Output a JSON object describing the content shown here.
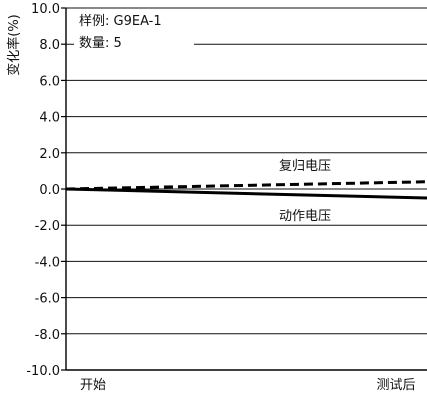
{
  "chart_data": {
    "type": "line",
    "ylabel": "变化率(%)",
    "ylim": [
      -10,
      10
    ],
    "ytick_labels": [
      "10.0",
      "8.0",
      "6.0",
      "4.0",
      "2.0",
      "0.0",
      "-2.0",
      "-4.0",
      "-6.0",
      "-8.0",
      "-10.0"
    ],
    "ytick_values": [
      10,
      8,
      6,
      4,
      2,
      0,
      -2,
      -4,
      -6,
      -8,
      -10
    ],
    "x": [
      "开始",
      "测试后"
    ],
    "xtick_labels": [
      "开始",
      "测试后"
    ],
    "grid": "horizontal",
    "annotation": {
      "sample": "样例: G9EA-1",
      "count": "数量: 5"
    },
    "series": [
      {
        "name": "复归电压",
        "style": "dashed",
        "values": [
          0.0,
          0.4
        ]
      },
      {
        "name": "动作电压",
        "style": "solid",
        "values": [
          0.0,
          -0.5
        ]
      }
    ]
  }
}
